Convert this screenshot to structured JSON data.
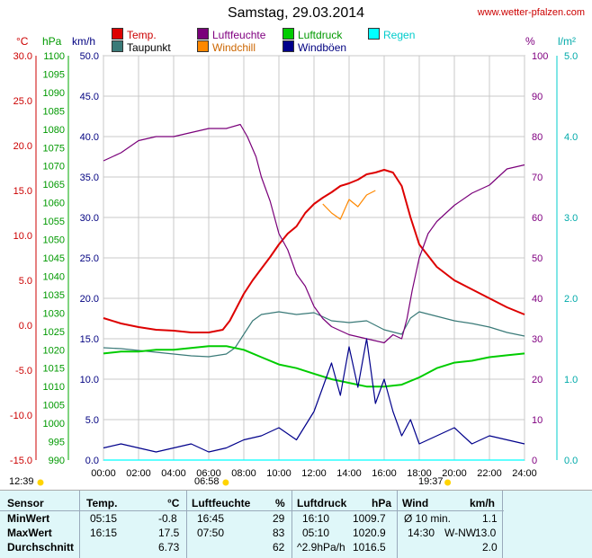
{
  "header": {
    "title": "Samstag, 29.03.2014",
    "site": "www.wetter-pfalzen.com"
  },
  "legend": [
    {
      "label": "Temp.",
      "color": "#dd0000"
    },
    {
      "label": "Taupunkt",
      "color": "#3a7a78"
    },
    {
      "label": "Luftfeuchte",
      "color": "#7a007a"
    },
    {
      "label": "Windchill",
      "color": "#ff8800"
    },
    {
      "label": "Luftdruck",
      "color": "#00cc00"
    },
    {
      "label": "Windböen",
      "color": "#00008b"
    },
    {
      "label": "Regen",
      "color": "#00ffff"
    }
  ],
  "axis_titles": {
    "temp": "°C",
    "pressure": "hPa",
    "wind": "km/h",
    "humidity": "%",
    "rain": "l/m²"
  },
  "sun": {
    "rise_dur": "12:39",
    "sunrise": "06:58",
    "sunset": "19:37"
  },
  "chart_data": {
    "type": "line",
    "x_ticks": [
      "00:00",
      "02:00",
      "04:00",
      "06:00",
      "08:00",
      "10:00",
      "12:00",
      "14:00",
      "16:00",
      "18:00",
      "20:00",
      "22:00",
      "24:00"
    ],
    "axes": {
      "temp": {
        "min": -15,
        "max": 30,
        "ticks": [
          "-15.0",
          "-10.0",
          "-5.0",
          "0.0",
          "5.0",
          "10.0",
          "15.0",
          "20.0",
          "25.0",
          "30.0"
        ],
        "color": "#cc0000"
      },
      "pressure": {
        "min": 990,
        "max": 1100,
        "ticks": [
          "990",
          "995",
          "1000",
          "1005",
          "1010",
          "1015",
          "1020",
          "1025",
          "1030",
          "1035",
          "1040",
          "1045",
          "1050",
          "1055",
          "1060",
          "1065",
          "1070",
          "1075",
          "1080",
          "1085",
          "1090",
          "1095",
          "1100"
        ],
        "color": "#009900"
      },
      "wind": {
        "min": 0,
        "max": 50,
        "ticks": [
          "0.0",
          "5.0",
          "10.0",
          "15.0",
          "20.0",
          "25.0",
          "30.0",
          "35.0",
          "40.0",
          "45.0",
          "50.0"
        ],
        "color": "#000080"
      },
      "humidity": {
        "min": 0,
        "max": 100,
        "ticks": [
          "0",
          "10",
          "20",
          "30",
          "40",
          "50",
          "60",
          "70",
          "80",
          "90",
          "100"
        ],
        "color": "#800080"
      },
      "rain": {
        "min": 0,
        "max": 5,
        "ticks": [
          "0.0",
          "1.0",
          "2.0",
          "3.0",
          "4.0",
          "5.0"
        ],
        "color": "#00aaaa"
      }
    },
    "series": [
      {
        "name": "Temp.",
        "axis": "temp",
        "color": "#dd0000",
        "x": [
          0,
          1,
          2,
          3,
          4,
          5,
          6,
          6.8,
          7.2,
          7.6,
          8,
          8.5,
          9,
          9.5,
          10,
          10.5,
          11,
          11.5,
          12,
          12.5,
          13,
          13.5,
          14,
          14.5,
          15,
          15.5,
          16,
          16.5,
          17,
          17.5,
          18,
          19,
          20,
          21,
          22,
          23,
          24
        ],
        "y": [
          0.8,
          0.2,
          -0.2,
          -0.5,
          -0.6,
          -0.8,
          -0.8,
          -0.5,
          0.5,
          2.0,
          3.5,
          5.0,
          6.3,
          7.6,
          9.0,
          10.2,
          11.0,
          12.5,
          13.5,
          14.2,
          14.8,
          15.5,
          15.8,
          16.2,
          16.8,
          17.0,
          17.3,
          17.0,
          15.5,
          12.0,
          9.0,
          6.5,
          5.0,
          4.0,
          3.0,
          2.0,
          1.2
        ]
      },
      {
        "name": "Taupunkt",
        "axis": "temp",
        "color": "#3a7a78",
        "x": [
          0,
          1,
          2,
          3,
          4,
          5,
          6,
          7,
          7.5,
          8,
          8.5,
          9,
          10,
          11,
          12,
          13,
          14,
          15,
          16,
          17,
          17.5,
          18,
          19,
          20,
          21,
          22,
          23,
          24
        ],
        "y": [
          -2.5,
          -2.6,
          -2.8,
          -3.0,
          -3.2,
          -3.4,
          -3.5,
          -3.2,
          -2.5,
          -1.0,
          0.5,
          1.2,
          1.5,
          1.2,
          1.4,
          0.5,
          0.3,
          0.5,
          -0.5,
          -1.0,
          0.8,
          1.5,
          1.0,
          0.5,
          0.2,
          -0.2,
          -0.8,
          -1.2
        ]
      },
      {
        "name": "Luftfeuchte",
        "axis": "humidity",
        "color": "#7a007a",
        "x": [
          0,
          1,
          2,
          3,
          4,
          5,
          6,
          7,
          7.8,
          8.2,
          8.7,
          9,
          9.5,
          10,
          10.5,
          11,
          11.5,
          12,
          12.5,
          13,
          14,
          15,
          16,
          16.5,
          17,
          17.3,
          17.6,
          18,
          18.5,
          19,
          20,
          21,
          22,
          23,
          24
        ],
        "y": [
          74,
          76,
          79,
          80,
          80,
          81,
          82,
          82,
          83,
          80,
          75,
          70,
          64,
          56,
          52,
          46,
          43,
          38,
          35,
          33,
          31,
          30,
          29,
          31,
          30,
          35,
          42,
          50,
          56,
          59,
          63,
          66,
          68,
          72,
          73
        ]
      },
      {
        "name": "Windchill",
        "axis": "temp",
        "color": "#ff8800",
        "x": [
          12.5,
          13,
          13.5,
          14,
          14.5,
          15,
          15.5
        ],
        "y": [
          13.5,
          12.5,
          11.8,
          14.0,
          13.2,
          14.5,
          15.0
        ]
      },
      {
        "name": "Luftdruck",
        "axis": "pressure",
        "color": "#00cc00",
        "x": [
          0,
          1,
          2,
          3,
          4,
          5,
          6,
          7,
          8,
          9,
          10,
          11,
          12,
          13,
          14,
          15,
          16,
          17,
          18,
          19,
          20,
          21,
          22,
          23,
          24
        ],
        "y": [
          1019,
          1019.5,
          1019.5,
          1020,
          1020,
          1020.5,
          1021,
          1021,
          1020,
          1018,
          1016,
          1015,
          1013.5,
          1012,
          1011,
          1010,
          1010,
          1010.5,
          1012.5,
          1015,
          1016.5,
          1017,
          1018,
          1018.5,
          1019
        ]
      },
      {
        "name": "Windböen",
        "axis": "wind",
        "color": "#00008b",
        "x": [
          0,
          1,
          2,
          3,
          4,
          5,
          6,
          7,
          8,
          9,
          10,
          11,
          12,
          12.5,
          13,
          13.5,
          14,
          14.5,
          15,
          15.5,
          16,
          16.5,
          17,
          17.5,
          18,
          19,
          20,
          21,
          22,
          23,
          24
        ],
        "y": [
          1.5,
          2.0,
          1.5,
          1.0,
          1.5,
          2.0,
          1.0,
          1.5,
          2.5,
          3.0,
          4.0,
          2.5,
          6.0,
          9.0,
          12.0,
          8.0,
          14.0,
          9.0,
          15.0,
          7.0,
          10.0,
          6.0,
          3.0,
          5.0,
          2.0,
          3.0,
          4.0,
          2.0,
          3.0,
          2.5,
          2.0
        ]
      },
      {
        "name": "Regen",
        "axis": "rain",
        "color": "#00ffff",
        "x": [
          0,
          24
        ],
        "y": [
          0,
          0
        ]
      }
    ]
  },
  "table": {
    "headers": [
      "Sensor",
      "Temp.",
      "°C",
      "Luftfeuchte",
      "%",
      "Luftdruck",
      "hPa",
      "Wind",
      "km/h"
    ],
    "rows": [
      {
        "label": "MinWert",
        "c1": "05:15",
        "c2": "-0.8",
        "c3": "16:45",
        "c4": "29",
        "c5": "16:10",
        "c6": "1009.7",
        "c7": "Ø 10 min.",
        "c8": "1.1"
      },
      {
        "label": "MaxWert",
        "c1": "16:15",
        "c2": "17.5",
        "c3": "07:50",
        "c4": "83",
        "c5": "05:10",
        "c6": "1020.9",
        "c7": "14:30",
        "c7b": "W-NW",
        "c8": "13.0"
      },
      {
        "label": "Durchschnitt",
        "c1": "",
        "c2": "6.73",
        "c3": "",
        "c4": "62",
        "c5": "^2.9hPa/h",
        "c6": "1016.5",
        "c7": "",
        "c8": "2.0"
      }
    ]
  }
}
